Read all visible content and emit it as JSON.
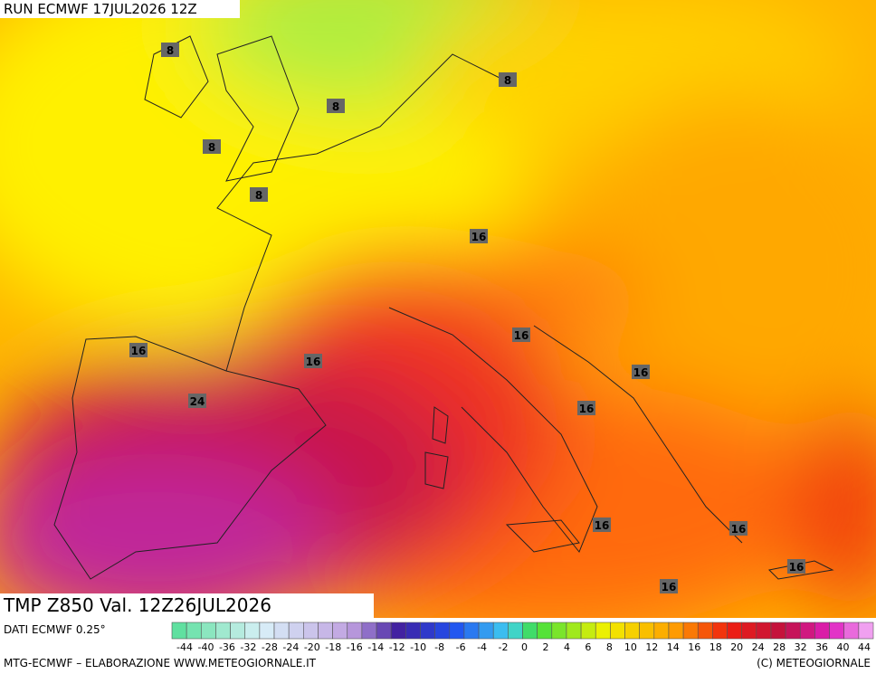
{
  "header": {
    "run": "RUN ECMWF 17JUL2026 12Z"
  },
  "map": {
    "field_label": "TMP Z850 Val. 12Z26JUL2026",
    "contour_labels": [
      8,
      8,
      8,
      8,
      8,
      16,
      16,
      16,
      16,
      16,
      16,
      16,
      16,
      16,
      16,
      24
    ]
  },
  "legend": {
    "source": "DATI ECMWF 0.25°",
    "ticks": [
      -44,
      -40,
      -36,
      -32,
      -28,
      -24,
      -20,
      -18,
      -16,
      -14,
      -12,
      -10,
      -8,
      -6,
      -4,
      -2,
      0,
      2,
      4,
      6,
      8,
      10,
      12,
      14,
      16,
      18,
      20,
      24,
      28,
      32,
      36,
      40,
      44
    ]
  },
  "footer": {
    "credit": "MTG-ECMWF – ELABORAZIONE WWW.METEOGIORNALE.IT",
    "copyright": "(C) METEOGIORNALE"
  }
}
